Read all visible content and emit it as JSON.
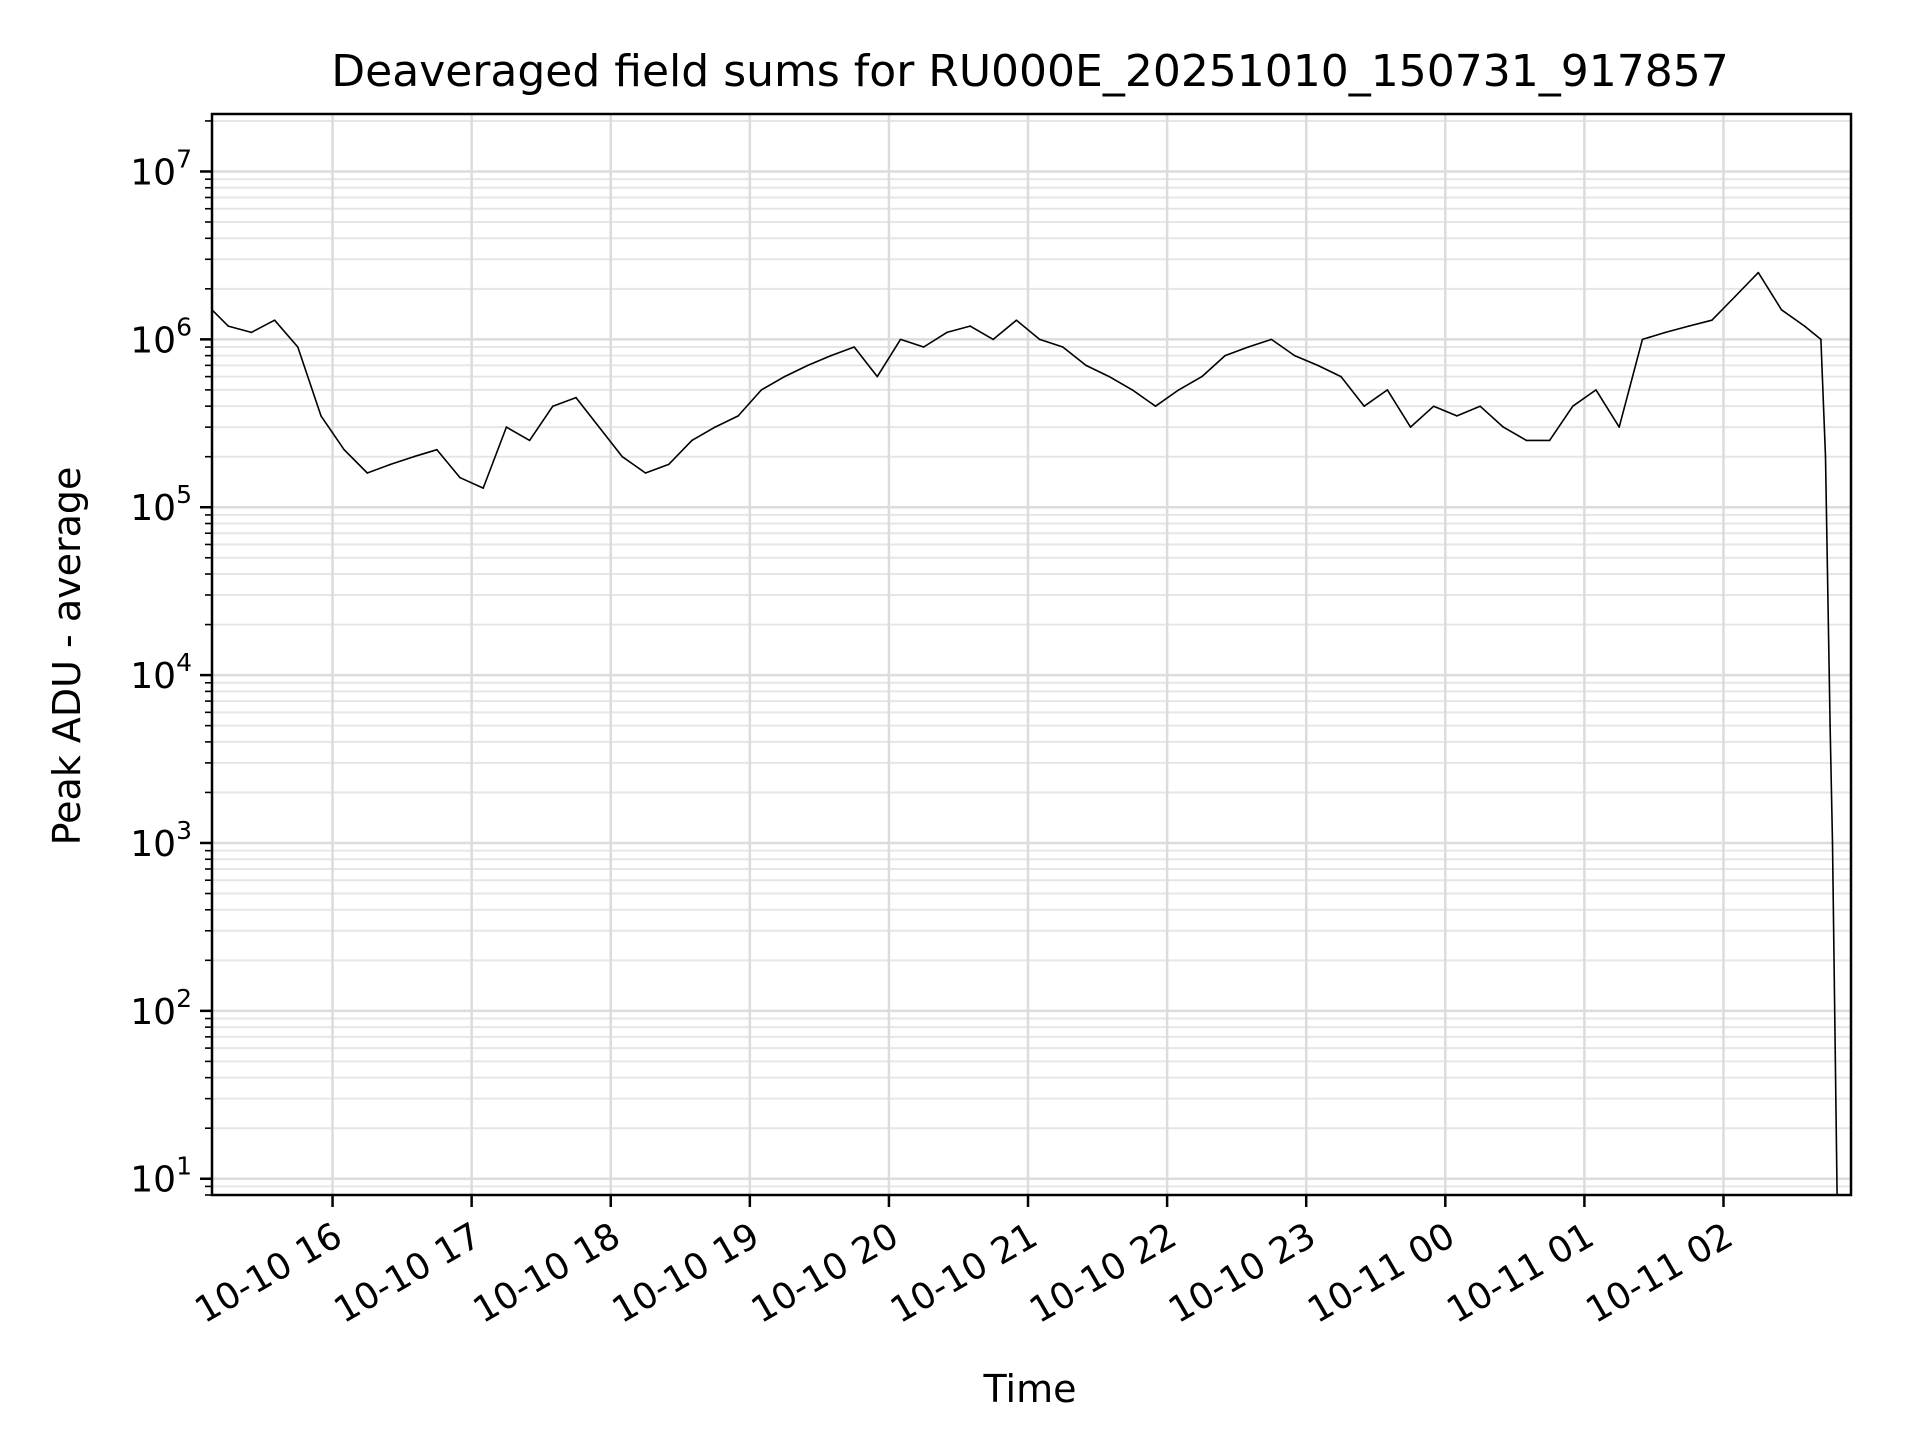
{
  "chart_data": {
    "type": "line",
    "title": "Deaveraged field sums for RU000E_20251010_150731_917857",
    "xlabel": "Time",
    "ylabel": "Peak ADU - average",
    "yscale": "log",
    "ylim": [
      8,
      22000000
    ],
    "xlim": [
      "2025-10-10 15:08",
      "2025-10-11 02:55"
    ],
    "grid": true,
    "line_color": "#000000",
    "x_ticks": [
      {
        "at": "2025-10-10 16:00",
        "label": "10-10 16"
      },
      {
        "at": "2025-10-10 17:00",
        "label": "10-10 17"
      },
      {
        "at": "2025-10-10 18:00",
        "label": "10-10 18"
      },
      {
        "at": "2025-10-10 19:00",
        "label": "10-10 19"
      },
      {
        "at": "2025-10-10 20:00",
        "label": "10-10 20"
      },
      {
        "at": "2025-10-10 21:00",
        "label": "10-10 21"
      },
      {
        "at": "2025-10-10 22:00",
        "label": "10-10 22"
      },
      {
        "at": "2025-10-10 23:00",
        "label": "10-10 23"
      },
      {
        "at": "2025-10-11 00:00",
        "label": "10-11 00"
      },
      {
        "at": "2025-10-11 01:00",
        "label": "10-11 01"
      },
      {
        "at": "2025-10-11 02:00",
        "label": "10-11 02"
      }
    ],
    "y_ticks": [
      {
        "value": 10,
        "base": "10",
        "exp": "1"
      },
      {
        "value": 100,
        "base": "10",
        "exp": "2"
      },
      {
        "value": 1000,
        "base": "10",
        "exp": "3"
      },
      {
        "value": 10000,
        "base": "10",
        "exp": "4"
      },
      {
        "value": 100000,
        "base": "10",
        "exp": "5"
      },
      {
        "value": 1000000,
        "base": "10",
        "exp": "6"
      },
      {
        "value": 10000000,
        "base": "10",
        "exp": "7"
      }
    ],
    "series": [
      {
        "x": [
          "2025-10-10 15:08",
          "2025-10-10 15:15",
          "2025-10-10 15:25",
          "2025-10-10 15:35",
          "2025-10-10 15:45",
          "2025-10-10 15:55",
          "2025-10-10 16:05",
          "2025-10-10 16:15",
          "2025-10-10 16:25",
          "2025-10-10 16:35",
          "2025-10-10 16:45",
          "2025-10-10 16:55",
          "2025-10-10 17:05",
          "2025-10-10 17:15",
          "2025-10-10 17:25",
          "2025-10-10 17:35",
          "2025-10-10 17:45",
          "2025-10-10 17:55",
          "2025-10-10 18:05",
          "2025-10-10 18:15",
          "2025-10-10 18:25",
          "2025-10-10 18:35",
          "2025-10-10 18:45",
          "2025-10-10 18:55",
          "2025-10-10 19:05",
          "2025-10-10 19:15",
          "2025-10-10 19:25",
          "2025-10-10 19:35",
          "2025-10-10 19:45",
          "2025-10-10 19:55",
          "2025-10-10 20:05",
          "2025-10-10 20:15",
          "2025-10-10 20:25",
          "2025-10-10 20:35",
          "2025-10-10 20:45",
          "2025-10-10 20:55",
          "2025-10-10 21:05",
          "2025-10-10 21:15",
          "2025-10-10 21:25",
          "2025-10-10 21:35",
          "2025-10-10 21:45",
          "2025-10-10 21:55",
          "2025-10-10 22:05",
          "2025-10-10 22:15",
          "2025-10-10 22:25",
          "2025-10-10 22:35",
          "2025-10-10 22:45",
          "2025-10-10 22:55",
          "2025-10-10 23:05",
          "2025-10-10 23:15",
          "2025-10-10 23:25",
          "2025-10-10 23:35",
          "2025-10-10 23:45",
          "2025-10-10 23:55",
          "2025-10-11 00:05",
          "2025-10-11 00:15",
          "2025-10-11 00:25",
          "2025-10-11 00:35",
          "2025-10-11 00:45",
          "2025-10-11 00:55",
          "2025-10-11 01:05",
          "2025-10-11 01:15",
          "2025-10-11 01:25",
          "2025-10-11 01:35",
          "2025-10-11 01:45",
          "2025-10-11 01:55",
          "2025-10-11 02:05",
          "2025-10-11 02:15",
          "2025-10-11 02:25",
          "2025-10-11 02:35",
          "2025-10-11 02:42",
          "2025-10-11 02:44",
          "2025-10-11 02:46",
          "2025-10-11 02:47",
          "2025-10-11 02:49"
        ],
        "y": [
          1500000,
          1200000,
          1100000,
          1300000,
          900000,
          350000,
          220000,
          160000,
          180000,
          200000,
          220000,
          150000,
          130000,
          300000,
          250000,
          400000,
          450000,
          300000,
          200000,
          160000,
          180000,
          250000,
          300000,
          350000,
          500000,
          600000,
          700000,
          800000,
          900000,
          600000,
          1000000,
          900000,
          1100000,
          1200000,
          1000000,
          1300000,
          1000000,
          900000,
          700000,
          600000,
          500000,
          400000,
          500000,
          600000,
          800000,
          900000,
          1000000,
          800000,
          700000,
          600000,
          400000,
          500000,
          300000,
          400000,
          350000,
          400000,
          300000,
          250000,
          250000,
          400000,
          500000,
          300000,
          1000000,
          1100000,
          1200000,
          1300000,
          1800000,
          2500000,
          1500000,
          1200000,
          1000000,
          200000,
          5000,
          1000,
          8
        ]
      }
    ]
  }
}
